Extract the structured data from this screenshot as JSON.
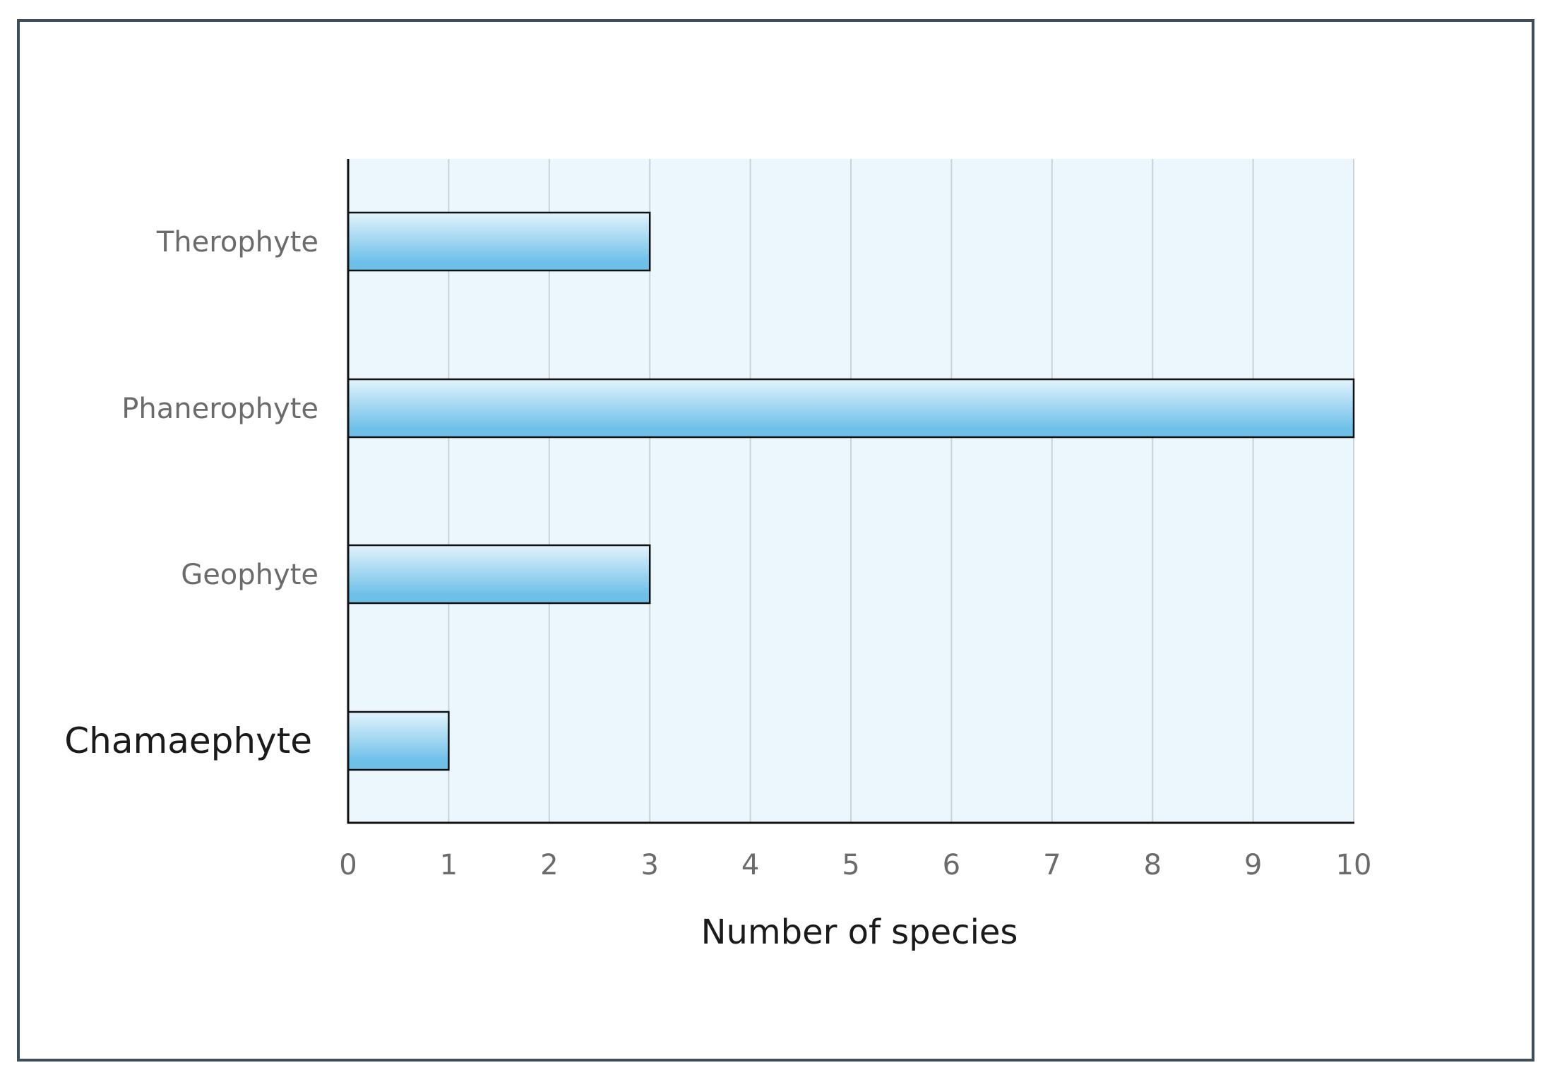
{
  "chart_data": {
    "type": "bar",
    "orientation": "horizontal",
    "categories": [
      "Therophyte",
      "Phanerophyte",
      "Geophyte",
      "Chamaephyte"
    ],
    "values": [
      3,
      10,
      3,
      1
    ],
    "title": "",
    "xlabel": "Number of species",
    "ylabel": "",
    "xlim": [
      0,
      10
    ],
    "xticks": [
      "0",
      "1",
      "2",
      "3",
      "4",
      "5",
      "6",
      "7",
      "8",
      "9",
      "10"
    ],
    "grid": true,
    "legend": "none",
    "colors": {
      "bar_light": "#e3f3fc",
      "bar_dark": "#6ec0e9",
      "bar_border": "#111111",
      "plot_background": "#ebf6fd",
      "gridline": "#c9d2d8",
      "axis": "#111111",
      "frame_border": "#3d4f5c"
    }
  }
}
